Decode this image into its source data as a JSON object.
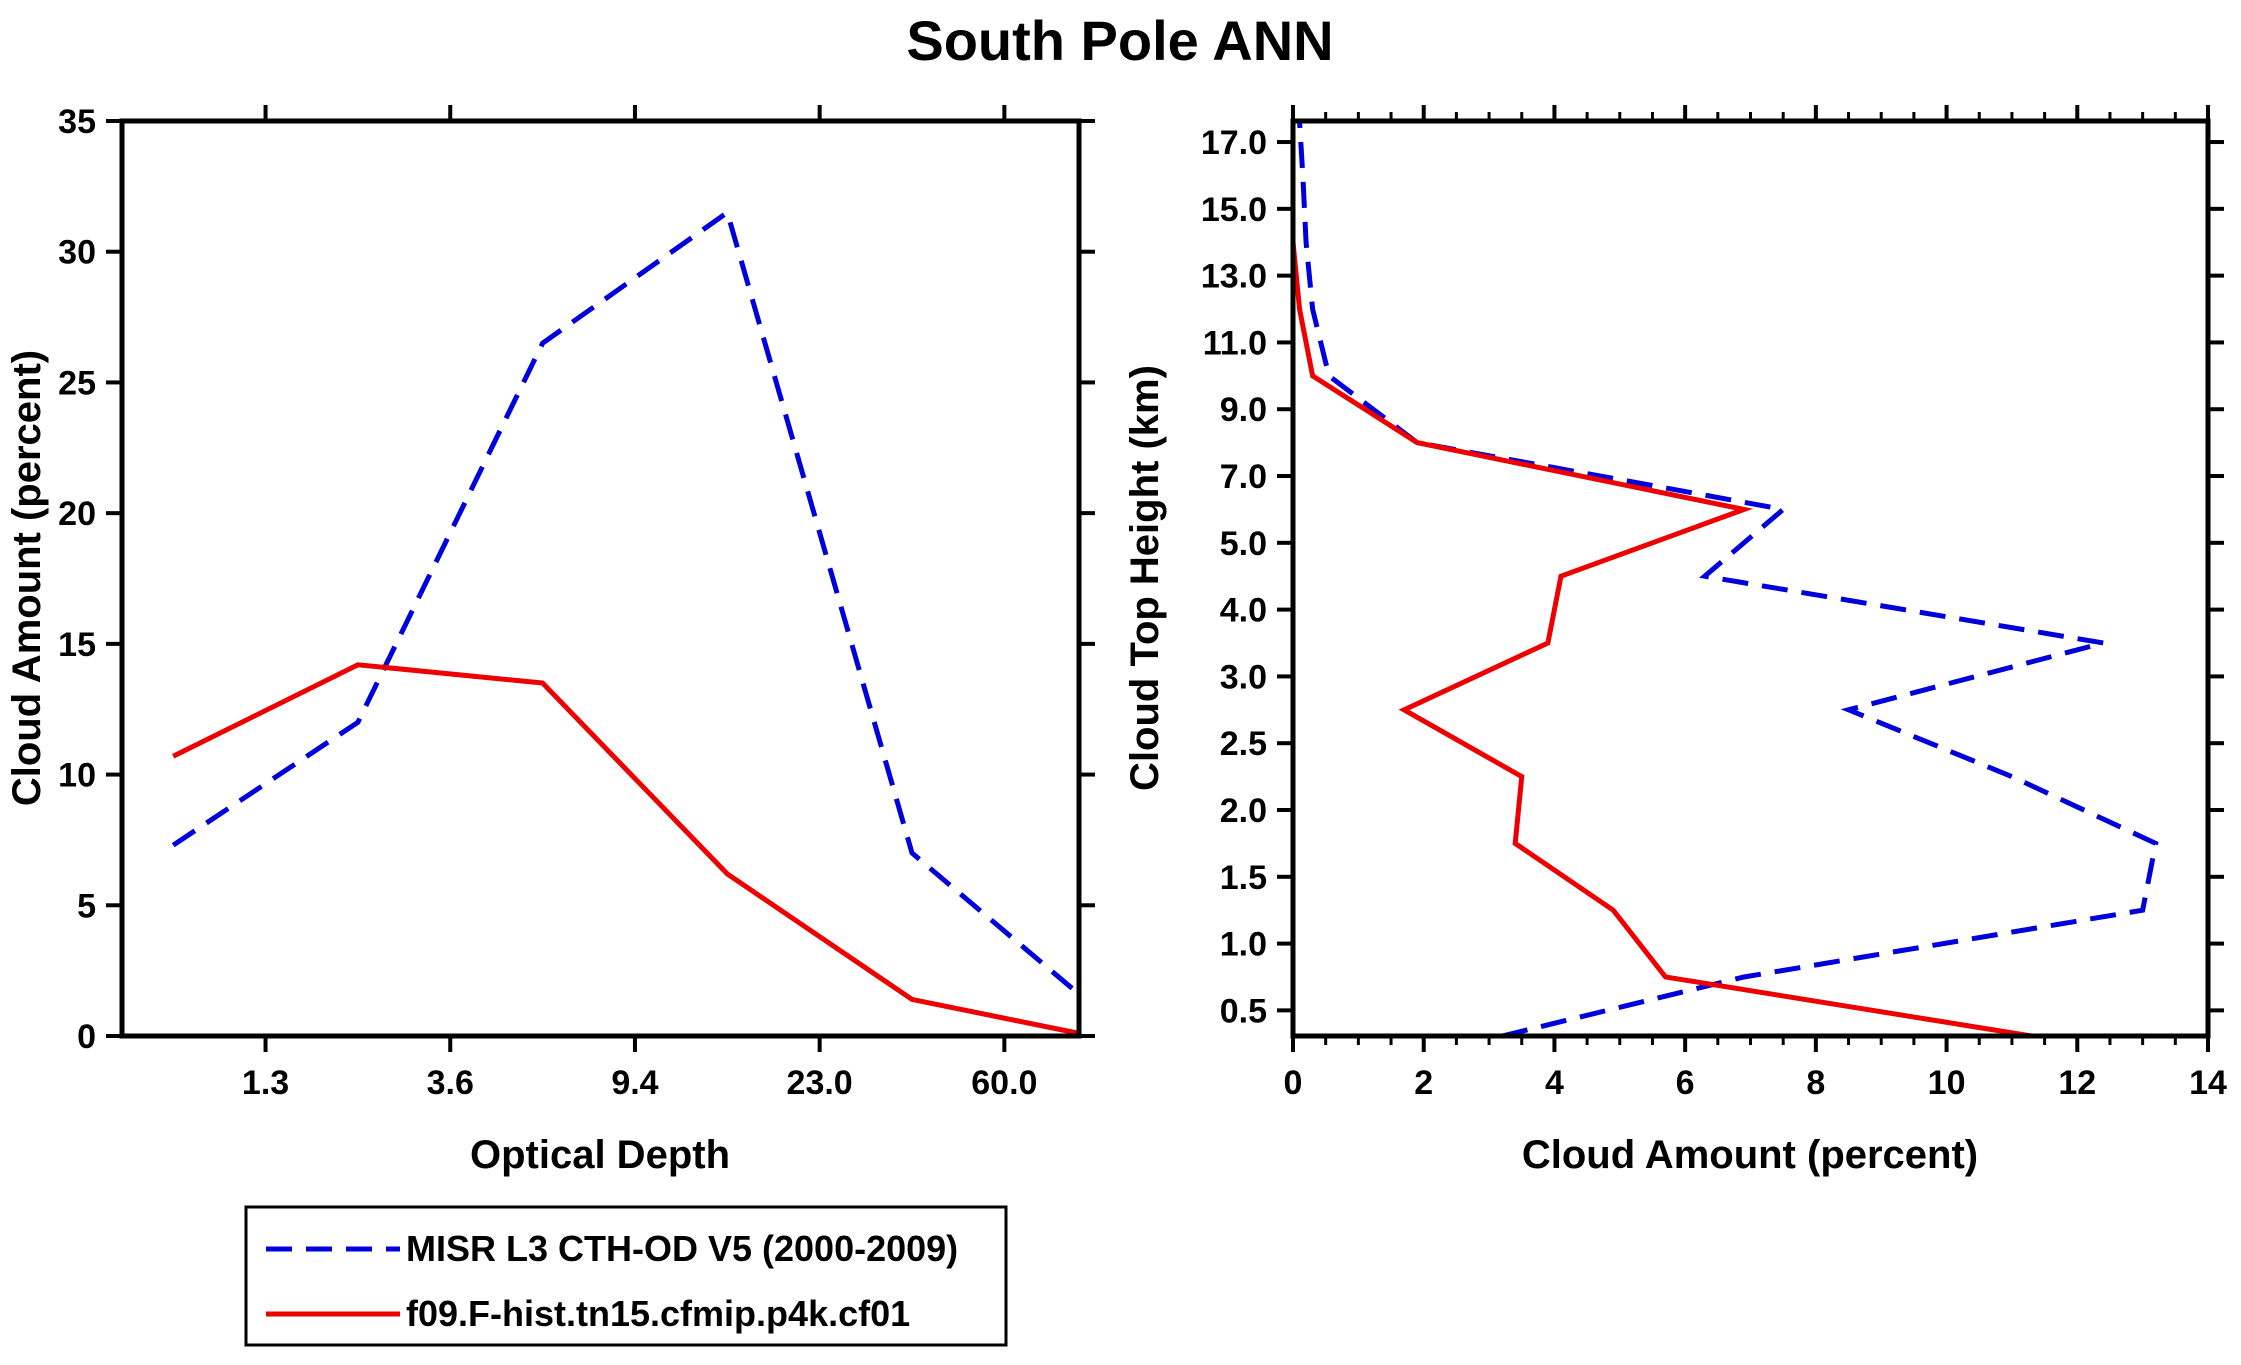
{
  "title": "South Pole ANN",
  "colors": {
    "axis": "#000000",
    "misr_blue": "#0000dd",
    "model_red": "#ee0000",
    "background": "#ffffff"
  },
  "legend": {
    "items": [
      {
        "label": "MISR L3 CTH-OD V5 (2000-2009)",
        "color": "#0000dd",
        "line_style": "dashed"
      },
      {
        "label": "f09.F-hist.tn15.cfmip.p4k.cf01",
        "color": "#ee0000",
        "line_style": "solid"
      }
    ]
  },
  "chart_data": [
    {
      "type": "line",
      "panel": "optical-depth-histogram",
      "title": "",
      "xlabel": "Optical Depth",
      "ylabel": "Cloud Amount (percent)",
      "x_axis": {
        "scale": "misr-optical-depth-bins",
        "tick_labels": [
          "1.3",
          "3.6",
          "9.4",
          "23.0",
          "60.0"
        ]
      },
      "y_axis": {
        "min": 0,
        "max": 35,
        "tick_step": 5,
        "tick_labels": [
          "0",
          "5",
          "10",
          "15",
          "20",
          "25",
          "30",
          "35"
        ]
      },
      "od_bin_centers": [
        0.65,
        2.45,
        6.5,
        16.2,
        41.5,
        80.0
      ],
      "series": [
        {
          "name": "MISR L3 CTH-OD V5 (2000-2009)",
          "style": "dashed",
          "color": "#0000dd",
          "values": [
            7.3,
            12.0,
            26.5,
            31.5,
            7.0,
            1.6
          ]
        },
        {
          "name": "f09.F-hist.tn15.cfmip.p4k.cf01",
          "style": "solid",
          "color": "#ee0000",
          "values": [
            10.7,
            14.2,
            13.5,
            6.2,
            1.4,
            0.1
          ]
        }
      ]
    },
    {
      "type": "line",
      "panel": "cloud-top-height-profile",
      "title": "",
      "xlabel": "Cloud Amount (percent)",
      "ylabel": "Cloud Top Height (km)",
      "x_axis": {
        "min": 0,
        "max": 14,
        "tick_step": 2,
        "minor_step": 0.5,
        "tick_labels": [
          "0",
          "2",
          "4",
          "6",
          "8",
          "10",
          "12",
          "14"
        ]
      },
      "y_axis": {
        "scale": "misr-cth-bins",
        "tick_labels": [
          "0.5",
          "1.0",
          "1.5",
          "2.0",
          "2.5",
          "3.0",
          "4.0",
          "5.0",
          "7.0",
          "9.0",
          "11.0",
          "13.0",
          "15.0",
          "17.0"
        ]
      },
      "height_bin_centers_km": [
        0.25,
        0.75,
        1.25,
        1.75,
        2.25,
        2.75,
        3.5,
        4.5,
        6.0,
        8.0,
        10.0,
        12.0,
        14.0,
        16.0,
        18.0
      ],
      "series": [
        {
          "name": "MISR L3 CTH-OD V5 (2000-2009)",
          "style": "dashed",
          "color": "#0000dd",
          "values": [
            3.2,
            6.9,
            13.0,
            13.2,
            11.0,
            8.5,
            12.4,
            6.3,
            7.5,
            1.9,
            0.55,
            0.3,
            0.2,
            0.15,
            0.1
          ]
        },
        {
          "name": "f09.F-hist.tn15.cfmip.p4k.cf01",
          "style": "solid",
          "color": "#ee0000",
          "values": [
            11.3,
            5.7,
            4.9,
            3.4,
            3.5,
            1.7,
            3.9,
            4.1,
            6.9,
            1.9,
            0.3,
            0.1,
            0.0,
            0.0,
            0.0
          ]
        }
      ]
    }
  ]
}
